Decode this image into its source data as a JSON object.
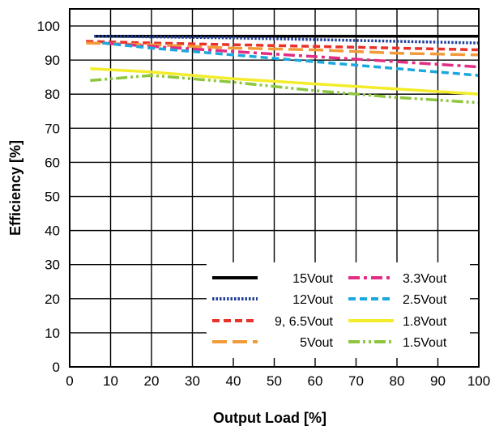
{
  "chart_data": {
    "type": "line",
    "xlabel": "Output Load [%]",
    "ylabel": "Efficiency [%]",
    "xlim": [
      0,
      100
    ],
    "ylim": [
      0,
      105
    ],
    "xticks": [
      "0",
      "10",
      "20",
      "30",
      "40",
      "50",
      "60",
      "70",
      "80",
      "90",
      "100"
    ],
    "yticks": [
      "0",
      "10",
      "20",
      "30",
      "40",
      "50",
      "60",
      "70",
      "80",
      "90",
      "100"
    ],
    "grid": true,
    "legend_position": "bottom-right",
    "series": [
      {
        "name": "15Vout",
        "color": "#000000",
        "dash": "solid",
        "x": [
          6,
          20,
          40,
          60,
          80,
          100
        ],
        "y": [
          97,
          97,
          97,
          97,
          97,
          97
        ]
      },
      {
        "name": "12Vout",
        "color": "#1f3f9b",
        "dash": "dotted",
        "x": [
          6,
          20,
          40,
          60,
          80,
          100
        ],
        "y": [
          97,
          96.8,
          96.5,
          96,
          95.5,
          95
        ]
      },
      {
        "name": "9, 6.5Vout",
        "color": "#e8322a",
        "dash": "dashed",
        "x": [
          4,
          20,
          40,
          60,
          80,
          100
        ],
        "y": [
          95.5,
          95,
          94.5,
          94,
          93.5,
          93
        ]
      },
      {
        "name": "5Vout",
        "color": "#f29a37",
        "dash": "longdash",
        "x": [
          4,
          20,
          40,
          60,
          80,
          100
        ],
        "y": [
          95,
          94.5,
          93.5,
          93,
          92,
          91.5
        ]
      },
      {
        "name": "3.3Vout",
        "color": "#e22d83",
        "dash": "dashdot",
        "x": [
          8,
          20,
          40,
          60,
          80,
          100
        ],
        "y": [
          95,
          94,
          92.5,
          91,
          89.5,
          88
        ]
      },
      {
        "name": "2.5Vout",
        "color": "#1ba8df",
        "dash": "dashed",
        "x": [
          8,
          20,
          40,
          60,
          80,
          100
        ],
        "y": [
          95,
          93.5,
          91.5,
          89.5,
          87.5,
          85.5
        ]
      },
      {
        "name": "1.8Vout",
        "color": "#f3ec2a",
        "dash": "solid",
        "x": [
          5,
          20,
          40,
          60,
          80,
          100
        ],
        "y": [
          87.5,
          86.5,
          84.5,
          83,
          81.5,
          80
        ]
      },
      {
        "name": "1.5Vout",
        "color": "#8dc63f",
        "dash": "dashdotdot",
        "x": [
          5,
          20,
          40,
          60,
          80,
          100
        ],
        "y": [
          84,
          85.5,
          83.5,
          81,
          79,
          77.5
        ]
      }
    ]
  }
}
